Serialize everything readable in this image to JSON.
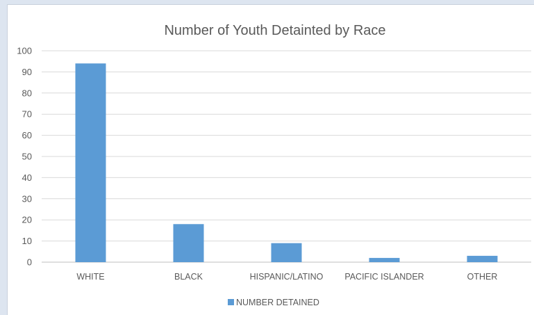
{
  "chart_data": {
    "type": "bar",
    "title": "Number of Youth Detainted by Race",
    "categories": [
      "WHITE",
      "BLACK",
      "HISPANIC/LATINO",
      "PACIFIC ISLANDER",
      "OTHER"
    ],
    "series": [
      {
        "name": "NUMBER DETAINED",
        "values": [
          94,
          18,
          9,
          2,
          3
        ],
        "color": "#5b9bd5"
      }
    ],
    "ylim": [
      0,
      100
    ],
    "yticks": [
      0,
      10,
      20,
      30,
      40,
      50,
      60,
      70,
      80,
      90,
      100
    ],
    "grid": true,
    "legend": "bottom",
    "xlabel": "",
    "ylabel": ""
  }
}
